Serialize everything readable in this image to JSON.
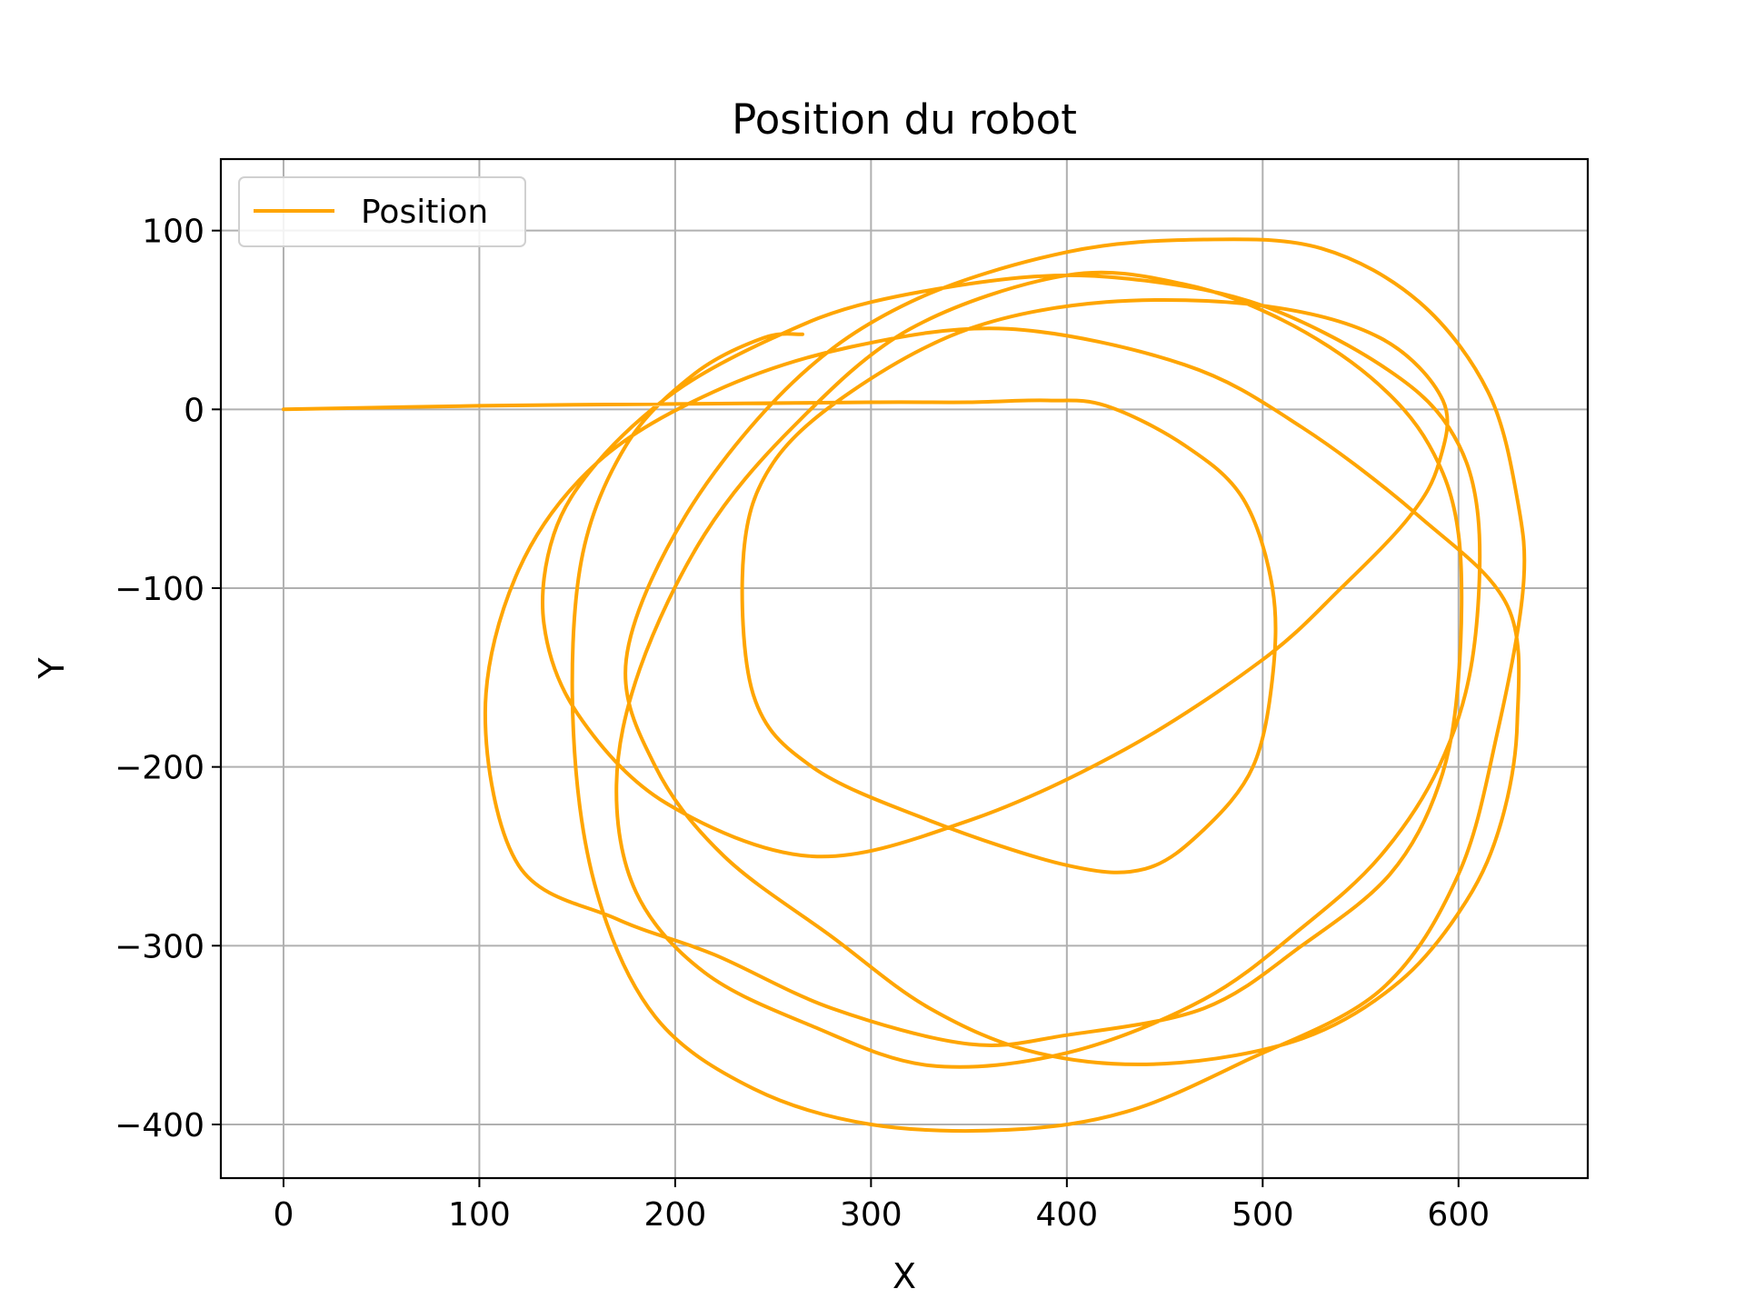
{
  "chart_data": {
    "type": "line",
    "title": "Position du robot",
    "xlabel": "X",
    "ylabel": "Y",
    "xlim": [
      -32,
      666
    ],
    "ylim": [
      -430,
      140
    ],
    "xticks": [
      0,
      100,
      200,
      300,
      400,
      500,
      600
    ],
    "yticks": [
      100,
      0,
      -100,
      -200,
      -300,
      -400
    ],
    "xtick_labels": [
      "0",
      "100",
      "200",
      "300",
      "400",
      "500",
      "600"
    ],
    "ytick_labels": [
      "100",
      "0",
      "−100",
      "−200",
      "−300",
      "−400"
    ],
    "grid": true,
    "legend_position": "upper-left",
    "colors": {
      "series": "#ffa500",
      "grid": "#b0b0b0",
      "axes": "#000000"
    },
    "series": [
      {
        "name": "Position",
        "color": "#ffa500",
        "x": [
          0,
          100,
          200,
          300,
          350,
          390,
          420,
          460,
          490,
          505,
          505,
          495,
          470,
          440,
          400,
          330,
          270,
          240,
          235,
          250,
          290,
          350,
          420,
          500,
          560,
          592,
          590,
          575,
          540,
          500,
          430,
          350,
          270,
          195,
          150,
          133,
          138,
          160,
          200,
          250,
          300,
          380,
          440,
          500,
          560,
          595,
          610,
          607,
          590,
          560,
          520,
          470,
          400,
          330,
          270,
          215,
          180,
          170,
          182,
          215,
          260,
          320,
          400,
          460,
          510,
          555,
          585,
          600,
          600,
          590,
          565,
          520,
          470,
          400,
          350,
          280,
          220,
          170,
          120,
          103,
          120,
          160,
          220,
          290,
          370,
          460,
          520,
          580,
          625,
          630,
          622,
          604,
          570,
          520,
          450,
          385,
          330,
          280,
          225,
          190,
          175,
          205,
          260,
          320,
          400,
          470,
          530,
          580,
          615,
          630,
          633,
          620,
          600,
          560,
          490,
          430,
          370,
          300,
          240,
          190,
          160,
          148,
          152,
          175,
          210,
          245,
          265
        ],
        "y": [
          0,
          2,
          3,
          4,
          4,
          5,
          2,
          -20,
          -50,
          -100,
          -150,
          -200,
          -235,
          -257,
          -255,
          -230,
          -200,
          -160,
          -80,
          -30,
          10,
          45,
          60,
          58,
          40,
          5,
          -30,
          -60,
          -100,
          -140,
          -190,
          -230,
          -250,
          -220,
          -170,
          -120,
          -70,
          -30,
          10,
          40,
          60,
          74,
          72,
          58,
          25,
          -10,
          -60,
          -140,
          -200,
          -250,
          -290,
          -330,
          -360,
          -367,
          -345,
          -315,
          -270,
          -210,
          -145,
          -70,
          -10,
          45,
          75,
          70,
          50,
          18,
          -20,
          -70,
          -150,
          -210,
          -260,
          -300,
          -335,
          -350,
          -355,
          -335,
          -305,
          -285,
          -255,
          -170,
          -90,
          -30,
          10,
          35,
          45,
          25,
          -10,
          -60,
          -110,
          -175,
          -230,
          -275,
          -320,
          -352,
          -366,
          -360,
          -335,
          -295,
          -250,
          -200,
          -140,
          -60,
          15,
          60,
          88,
          95,
          90,
          60,
          10,
          -50,
          -100,
          -180,
          -260,
          -325,
          -365,
          -393,
          -403,
          -400,
          -380,
          -340,
          -270,
          -180,
          -85,
          -20,
          20,
          40,
          42
        ]
      }
    ],
    "legend": {
      "label": "Position"
    }
  }
}
